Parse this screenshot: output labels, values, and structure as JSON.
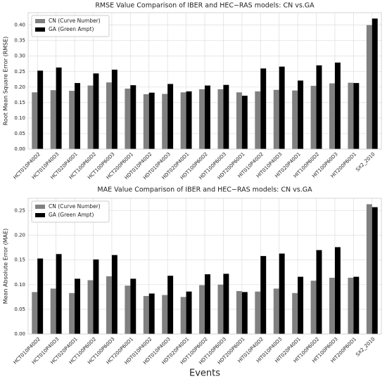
{
  "chart_data": [
    {
      "type": "bar",
      "title": "RMSE Value Comparison of IBER and HEC−RAS models: CN vs.GA",
      "y_label": "Root Mean Square Error (RMSE)",
      "categories": [
        "HCT010P40D2",
        "HCT010P40D3",
        "HCT020P40D1",
        "HCT100P60D2",
        "HCT100P60D3",
        "HCT200P60D1",
        "HDT010P40D2",
        "HDT010P40D3",
        "HDT020P40D1",
        "HDT100P60D2",
        "HDT100P60D3",
        "HDT200P60D1",
        "HIT010P40D2",
        "HIT010P40D3",
        "HIT020P40D1",
        "HIT100P60D2",
        "HIT100P60D3",
        "HIT200P60D1",
        "SX2_2010"
      ],
      "series": [
        {
          "name": "CN (Curve Number)",
          "color": "#808080",
          "values": [
            0.183,
            0.19,
            0.188,
            0.205,
            0.215,
            0.195,
            0.177,
            0.178,
            0.183,
            0.193,
            0.193,
            0.183,
            0.186,
            0.191,
            0.189,
            0.204,
            0.212,
            0.214,
            0.4
          ]
        },
        {
          "name": "GA (Green Ampt)",
          "color": "#000000",
          "values": [
            0.253,
            0.263,
            0.213,
            0.244,
            0.256,
            0.206,
            0.182,
            0.21,
            0.186,
            0.205,
            0.207,
            0.172,
            0.26,
            0.266,
            0.221,
            0.27,
            0.279,
            0.213,
            0.421
          ]
        }
      ],
      "ylim": [
        0,
        0.44
      ],
      "yticks": [
        {
          "value": 0,
          "label": "0.00"
        },
        {
          "value": 0.05,
          "label": "0.05"
        },
        {
          "value": 0.1,
          "label": "0.10"
        },
        {
          "value": 0.15,
          "label": "0.15"
        },
        {
          "value": 0.2,
          "label": "0.20"
        },
        {
          "value": 0.25,
          "label": "0.25"
        },
        {
          "value": 0.3,
          "label": "0.30"
        },
        {
          "value": 0.35,
          "label": "0.35"
        },
        {
          "value": 0.4,
          "label": "0.40"
        }
      ],
      "grid": true,
      "legend": "upper left"
    },
    {
      "type": "bar",
      "title": "MAE Value Comparison of IBER and HEC−RAS models: CN vs.GA",
      "y_label": "Mean Absolute Error (MAE)",
      "x_label": "Events",
      "categories": [
        "HCT010P40D2",
        "HCT010P40D3",
        "HCT020P40D1",
        "HCT100P60D2",
        "HCT100P60D3",
        "HCT200P60D1",
        "HDT010P40D2",
        "HDT010P40D3",
        "HDT020P40D1",
        "HDT100P60D2",
        "HDT100P60D3",
        "HDT200P60D1",
        "HIT010P40D2",
        "HIT010P40D3",
        "HIT020P40D1",
        "HIT100P60D2",
        "HIT100P60D3",
        "HIT200P60D1",
        "SX2_2010"
      ],
      "series": [
        {
          "name": "CN (Curve Number)",
          "color": "#808080",
          "values": [
            0.085,
            0.092,
            0.083,
            0.109,
            0.117,
            0.098,
            0.077,
            0.079,
            0.075,
            0.099,
            0.1,
            0.087,
            0.086,
            0.092,
            0.083,
            0.108,
            0.114,
            0.114,
            0.263
          ]
        },
        {
          "name": "GA (Green Ampt)",
          "color": "#000000",
          "values": [
            0.153,
            0.162,
            0.112,
            0.151,
            0.16,
            0.112,
            0.082,
            0.118,
            0.086,
            0.121,
            0.122,
            0.085,
            0.158,
            0.163,
            0.116,
            0.17,
            0.176,
            0.116,
            0.257
          ]
        }
      ],
      "ylim": [
        0,
        0.275
      ],
      "yticks": [
        {
          "value": 0,
          "label": "0.00"
        },
        {
          "value": 0.05,
          "label": "0.05"
        },
        {
          "value": 0.1,
          "label": "0.10"
        },
        {
          "value": 0.15,
          "label": "0.15"
        },
        {
          "value": 0.2,
          "label": "0.20"
        },
        {
          "value": 0.25,
          "label": "0.25"
        }
      ],
      "grid": true,
      "legend": "upper left"
    }
  ]
}
